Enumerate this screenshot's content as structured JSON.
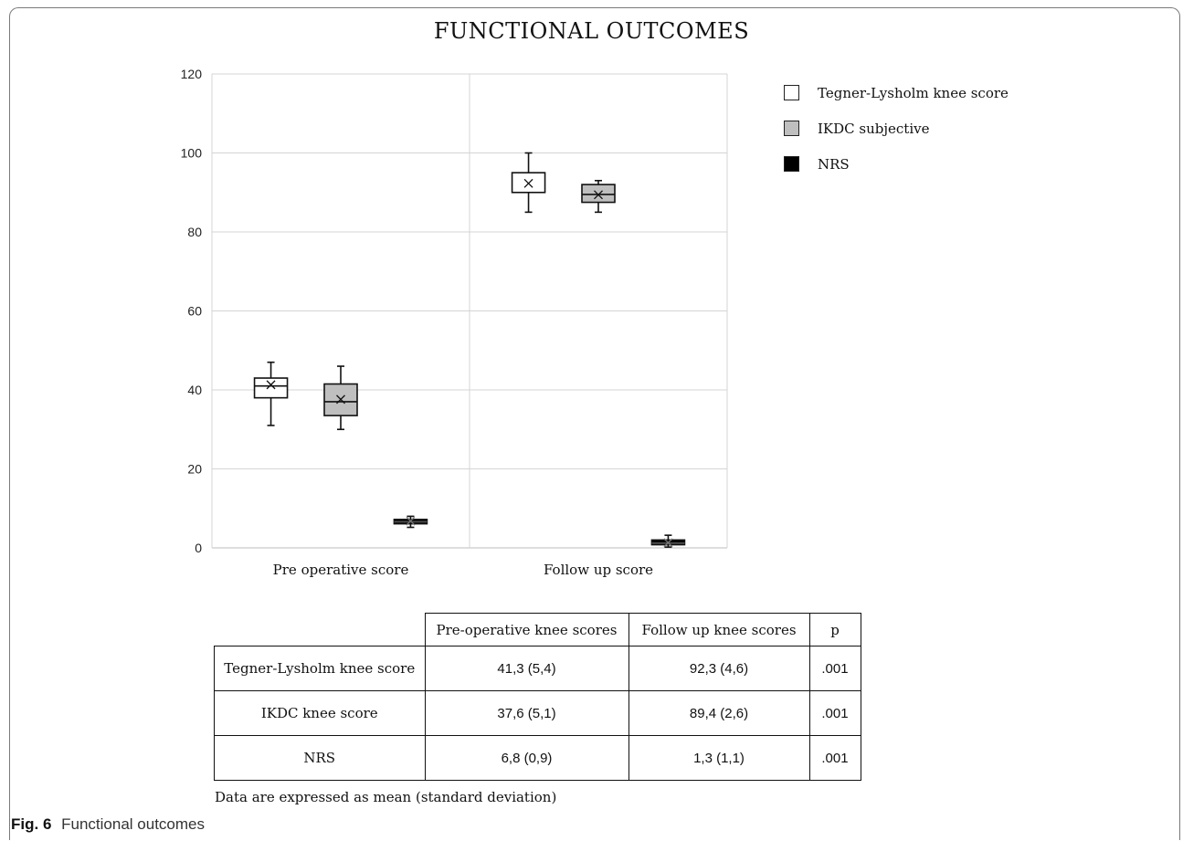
{
  "chart_data": {
    "type": "box",
    "title": "FUNCTIONAL OUTCOMES",
    "categories": [
      "Pre operative score",
      "Follow up score"
    ],
    "ylim": [
      0,
      120
    ],
    "yticks": [
      0,
      20,
      40,
      60,
      80,
      100,
      120
    ],
    "grid": true,
    "legend_position": "right",
    "series": [
      {
        "name": "Tegner-Lysholm knee score",
        "color": "#ffffff",
        "boxes": [
          {
            "min": 31,
            "q1": 38,
            "median": 41,
            "q3": 43,
            "max": 47,
            "mean": 41.3
          },
          {
            "min": 85,
            "q1": 90,
            "median": 90,
            "q3": 95,
            "max": 100,
            "mean": 92.3
          }
        ]
      },
      {
        "name": "IKDC subjective",
        "color": "#bfbfbf",
        "boxes": [
          {
            "min": 30,
            "q1": 33.5,
            "median": 37,
            "q3": 41.5,
            "max": 46,
            "mean": 37.6
          },
          {
            "min": 85,
            "q1": 87.5,
            "median": 89.5,
            "q3": 92,
            "max": 93,
            "mean": 89.4
          }
        ]
      },
      {
        "name": "NRS",
        "color": "#000000",
        "boxes": [
          {
            "min": 5.2,
            "q1": 6.1,
            "median": 6.6,
            "q3": 7.2,
            "max": 8,
            "mean": 6.8
          },
          {
            "min": 0.2,
            "q1": 0.8,
            "median": 1.2,
            "q3": 2,
            "max": 3.2,
            "mean": 1.3
          }
        ]
      }
    ]
  },
  "table": {
    "headers": [
      "",
      "Pre-operative knee scores",
      "Follow up knee scores",
      "p"
    ],
    "rows": [
      [
        "Tegner-Lysholm knee score",
        "41,3 (5,4)",
        "92,3 (4,6)",
        ".001"
      ],
      [
        "IKDC knee score",
        "37,6 (5,1)",
        "89,4 (2,6)",
        ".001"
      ],
      [
        "NRS",
        "6,8 (0,9)",
        "1,3 (1,1)",
        ".001"
      ]
    ]
  },
  "note": "Data are expressed as mean (standard deviation)",
  "caption": {
    "fig_label": "Fig. 6",
    "text": "Functional outcomes"
  }
}
